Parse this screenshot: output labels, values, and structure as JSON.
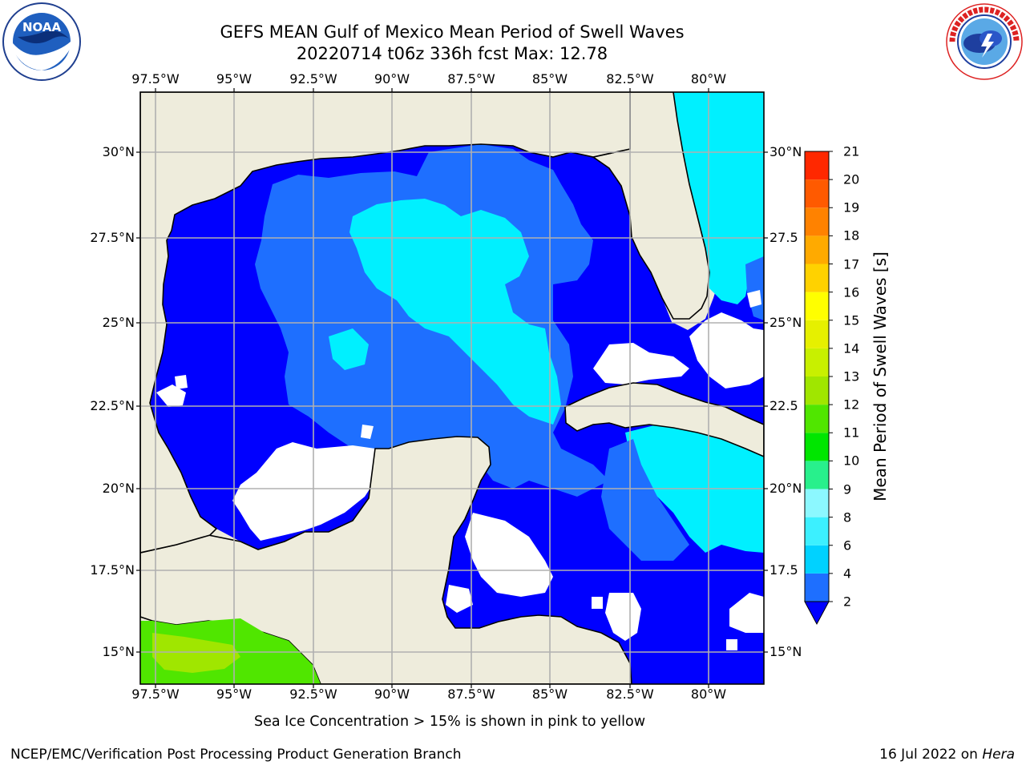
{
  "header": {
    "title_line1": "GEFS MEAN Gulf of Mexico Mean Period of Swell Waves",
    "title_line2": "20220714 t06z 336h fcst   Max: 12.78"
  },
  "logos": {
    "left": {
      "icon": "noaa-logo-icon",
      "text": "NOAA"
    },
    "right": {
      "icon": "nws-logo-icon",
      "text": "NATIONAL WEATHER SERVICE"
    }
  },
  "map": {
    "lon_ticks": [
      "97.5°W",
      "95°W",
      "92.5°W",
      "90°W",
      "87.5°W",
      "85°W",
      "82.5°W",
      "80°W"
    ],
    "lat_ticks_left": [
      "30°N",
      "27.5°N",
      "25°N",
      "22.5°N",
      "20°N",
      "17.5°N",
      "15°N"
    ],
    "lat_ticks_right": [
      "30°N",
      "27.5",
      "25°N",
      "22.5",
      "20°N",
      "17.5",
      "15°N"
    ],
    "land_color": "#eeecdc",
    "grid_color": "#b0b0b0",
    "max_value": 12.78
  },
  "colorbar": {
    "title": "Mean Period of Swell Waves [s]",
    "labels": [
      "2",
      "4",
      "6",
      "8",
      "9",
      "10",
      "11",
      "12",
      "13",
      "14",
      "15",
      "16",
      "17",
      "18",
      "19",
      "20",
      "21"
    ],
    "colors": [
      "#1e6fff",
      "#00d2ff",
      "#3cf0ff",
      "#8cf8ff",
      "#28f08c",
      "#00e600",
      "#50e600",
      "#a0e600",
      "#c8f000",
      "#e6f000",
      "#ffff00",
      "#ffd200",
      "#ffaa00",
      "#ff8200",
      "#ff5a00",
      "#ff2800",
      "#ff0000"
    ],
    "extend_color": "#0000ff"
  },
  "footer": {
    "sea_ice_note": "Sea Ice Concentration > 15% is shown in pink to yellow",
    "credit": "NCEP/EMC/Verification Post Processing Product Generation Branch",
    "date": "16 Jul 2022 on ",
    "host": "Hera"
  }
}
